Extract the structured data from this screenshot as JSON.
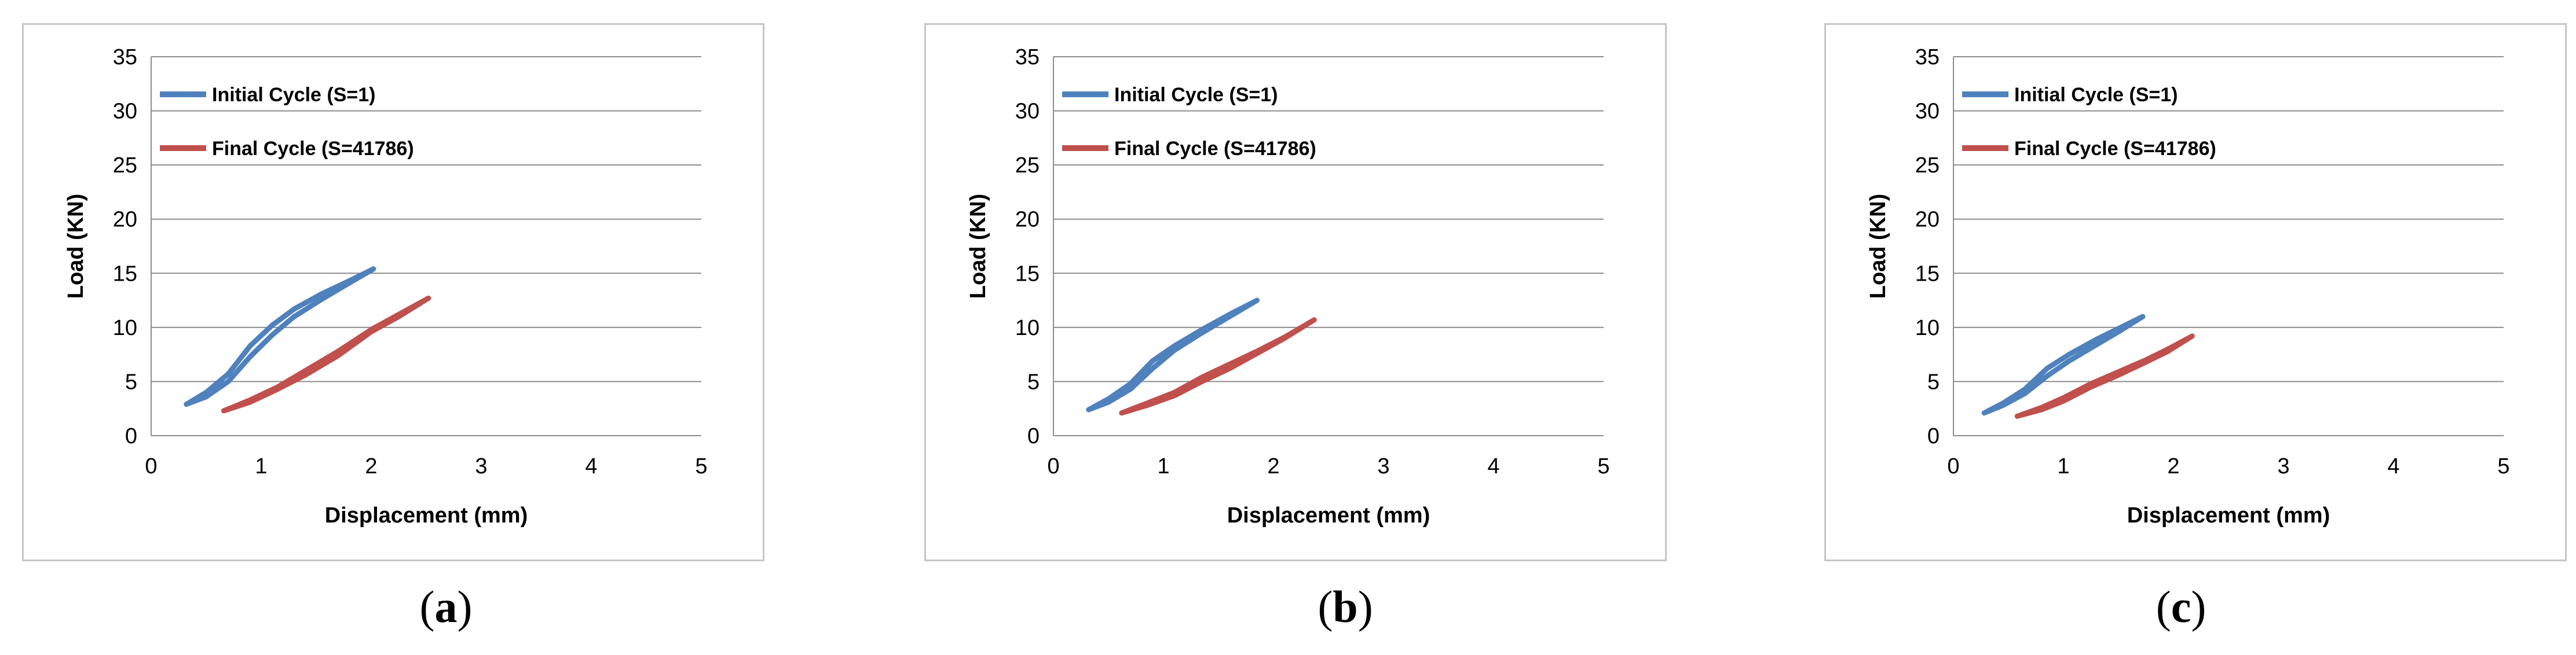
{
  "chart_data": [
    {
      "type": "line",
      "panel_label": "a",
      "xlabel": "Displacement (mm)",
      "ylabel": "Load (KN)",
      "xlim": [
        0,
        5
      ],
      "ylim": [
        0,
        35
      ],
      "xticks": [
        0,
        1,
        2,
        3,
        4,
        5
      ],
      "yticks": [
        0,
        5,
        10,
        15,
        20,
        25,
        30,
        35
      ],
      "grid": "horizontal",
      "legend": "top-left",
      "series": [
        {
          "name": "Initial Cycle (S=1)",
          "color": "#4f81bd",
          "x": [
            0.32,
            0.5,
            0.7,
            0.9,
            1.1,
            1.3,
            1.55,
            1.8,
            2.02,
            1.8,
            1.55,
            1.3,
            1.1,
            0.9,
            0.7,
            0.5,
            0.32
          ],
          "y": [
            2.9,
            4.0,
            5.7,
            8.3,
            10.2,
            11.7,
            13.1,
            14.3,
            15.4,
            14.1,
            12.6,
            11.0,
            9.3,
            7.3,
            5.0,
            3.6,
            2.9
          ]
        },
        {
          "name": "Final Cycle (S=41786)",
          "color": "#c0504d",
          "x": [
            0.66,
            0.9,
            1.15,
            1.4,
            1.7,
            2.0,
            2.25,
            2.52,
            2.25,
            2.0,
            1.7,
            1.4,
            1.15,
            0.9,
            0.66
          ],
          "y": [
            2.3,
            3.3,
            4.5,
            6.0,
            7.8,
            9.8,
            11.2,
            12.7,
            11.0,
            9.6,
            7.4,
            5.6,
            4.3,
            3.1,
            2.3
          ]
        }
      ]
    },
    {
      "type": "line",
      "panel_label": "b",
      "xlabel": "Displacement (mm)",
      "ylabel": "Load (KN)",
      "xlim": [
        0,
        5
      ],
      "ylim": [
        0,
        35
      ],
      "xticks": [
        0,
        1,
        2,
        3,
        4,
        5
      ],
      "yticks": [
        0,
        5,
        10,
        15,
        20,
        25,
        30,
        35
      ],
      "grid": "horizontal",
      "legend": "top-left",
      "series": [
        {
          "name": "Initial Cycle (S=1)",
          "color": "#4f81bd",
          "x": [
            0.32,
            0.5,
            0.7,
            0.9,
            1.1,
            1.35,
            1.6,
            1.85,
            1.6,
            1.35,
            1.1,
            0.9,
            0.7,
            0.5,
            0.32
          ],
          "y": [
            2.4,
            3.4,
            4.8,
            6.9,
            8.3,
            9.8,
            11.2,
            12.5,
            11.0,
            9.5,
            7.9,
            6.2,
            4.3,
            3.1,
            2.4
          ]
        },
        {
          "name": "Final Cycle (S=41786)",
          "color": "#c0504d",
          "x": [
            0.62,
            0.85,
            1.1,
            1.35,
            1.6,
            1.85,
            2.1,
            2.37,
            2.1,
            1.85,
            1.6,
            1.35,
            1.1,
            0.85,
            0.62
          ],
          "y": [
            2.1,
            3.0,
            4.0,
            5.4,
            6.6,
            7.8,
            9.1,
            10.7,
            9.0,
            7.6,
            6.2,
            5.0,
            3.7,
            2.8,
            2.1
          ]
        }
      ]
    },
    {
      "type": "line",
      "panel_label": "c",
      "xlabel": "Displacement (mm)",
      "ylabel": "Load (KN)",
      "xlim": [
        0,
        5
      ],
      "ylim": [
        0,
        35
      ],
      "xticks": [
        0,
        1,
        2,
        3,
        4,
        5
      ],
      "yticks": [
        0,
        5,
        10,
        15,
        20,
        25,
        30,
        35
      ],
      "grid": "horizontal",
      "legend": "top-left",
      "series": [
        {
          "name": "Initial Cycle (S=1)",
          "color": "#4f81bd",
          "x": [
            0.28,
            0.45,
            0.65,
            0.85,
            1.05,
            1.3,
            1.5,
            1.72,
            1.5,
            1.3,
            1.05,
            0.85,
            0.65,
            0.45,
            0.28
          ],
          "y": [
            2.1,
            3.0,
            4.3,
            6.2,
            7.5,
            8.9,
            9.9,
            11.0,
            9.6,
            8.4,
            6.9,
            5.5,
            3.9,
            2.8,
            2.1
          ]
        },
        {
          "name": "Final Cycle (S=41786)",
          "color": "#c0504d",
          "x": [
            0.58,
            0.8,
            1.0,
            1.25,
            1.5,
            1.75,
            1.95,
            2.17,
            1.95,
            1.75,
            1.5,
            1.25,
            1.0,
            0.8,
            0.58
          ],
          "y": [
            1.8,
            2.6,
            3.5,
            4.8,
            5.9,
            7.0,
            8.0,
            9.2,
            7.8,
            6.8,
            5.6,
            4.5,
            3.2,
            2.4,
            1.8
          ]
        }
      ]
    }
  ]
}
